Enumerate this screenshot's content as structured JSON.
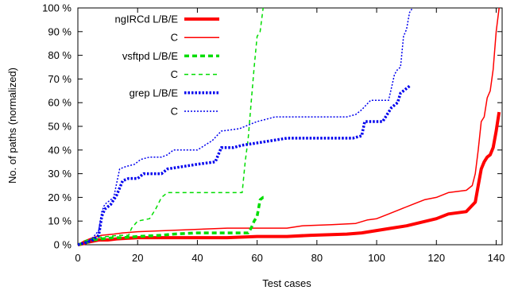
{
  "chart_data": {
    "type": "line",
    "title": "",
    "xlabel": "Test cases",
    "ylabel": "No. of paths (normalized)",
    "xlim": [
      0,
      142
    ],
    "ylim": [
      0,
      100
    ],
    "x_ticks": [
      "0",
      "20",
      "40",
      "60",
      "80",
      "100",
      "120",
      "140"
    ],
    "y_ticks": [
      "0 %",
      "10 %",
      "20 %",
      "30 %",
      "40 %",
      "50 %",
      "60 %",
      "70 %",
      "80 %",
      "90 %",
      "100 %"
    ],
    "grid": false,
    "legend_position": "top-left",
    "series": [
      {
        "name": "ngIRCd L/B/E",
        "color": "#ff0000",
        "style": "solid-thick",
        "points": [
          [
            0,
            0
          ],
          [
            2,
            0.5
          ],
          [
            3,
            1
          ],
          [
            5,
            1.5
          ],
          [
            7,
            2
          ],
          [
            10,
            2
          ],
          [
            13,
            2.5
          ],
          [
            20,
            3
          ],
          [
            30,
            3
          ],
          [
            40,
            3
          ],
          [
            50,
            3
          ],
          [
            60,
            3.5
          ],
          [
            70,
            3.5
          ],
          [
            78,
            4
          ],
          [
            90,
            4.5
          ],
          [
            95,
            5
          ],
          [
            100,
            6
          ],
          [
            105,
            7
          ],
          [
            110,
            8
          ],
          [
            115,
            9.5
          ],
          [
            120,
            11
          ],
          [
            124,
            13
          ],
          [
            130,
            14
          ],
          [
            133,
            18
          ],
          [
            134,
            25
          ],
          [
            135,
            32
          ],
          [
            136,
            35
          ],
          [
            137,
            37
          ],
          [
            138,
            38
          ],
          [
            139,
            41
          ],
          [
            140,
            48
          ],
          [
            141,
            56
          ]
        ]
      },
      {
        "name": "C",
        "color": "#ff0000",
        "style": "solid-thin",
        "points": [
          [
            0,
            0
          ],
          [
            2,
            1.5
          ],
          [
            5,
            3
          ],
          [
            8,
            4
          ],
          [
            12,
            4.5
          ],
          [
            15,
            5
          ],
          [
            20,
            5.5
          ],
          [
            30,
            6
          ],
          [
            40,
            6.5
          ],
          [
            50,
            7
          ],
          [
            60,
            7
          ],
          [
            70,
            7
          ],
          [
            75,
            8
          ],
          [
            85,
            8.5
          ],
          [
            93,
            9
          ],
          [
            97,
            10.5
          ],
          [
            100,
            11
          ],
          [
            104,
            13
          ],
          [
            108,
            15
          ],
          [
            112,
            17
          ],
          [
            116,
            19
          ],
          [
            120,
            20
          ],
          [
            124,
            22
          ],
          [
            130,
            23
          ],
          [
            132,
            25
          ],
          [
            133,
            30
          ],
          [
            134,
            40
          ],
          [
            135,
            52
          ],
          [
            136,
            54
          ],
          [
            137,
            62
          ],
          [
            138,
            65
          ],
          [
            139,
            74
          ],
          [
            140,
            90
          ],
          [
            141,
            100
          ]
        ]
      },
      {
        "name": "vsftpd L/B/E",
        "color": "#00dd00",
        "style": "dashed-thick",
        "points": [
          [
            0,
            0
          ],
          [
            3,
            1
          ],
          [
            5,
            2
          ],
          [
            8,
            2.5
          ],
          [
            12,
            3
          ],
          [
            15,
            3
          ],
          [
            20,
            3.5
          ],
          [
            28,
            4
          ],
          [
            32,
            4.5
          ],
          [
            40,
            5
          ],
          [
            50,
            5
          ],
          [
            57,
            5
          ],
          [
            58,
            7
          ],
          [
            59,
            10
          ],
          [
            60,
            12
          ],
          [
            61,
            19
          ],
          [
            62,
            20
          ],
          [
            63,
            20
          ]
        ]
      },
      {
        "name": "C",
        "color": "#00dd00",
        "style": "dashed-thin",
        "points": [
          [
            0,
            0
          ],
          [
            3,
            2
          ],
          [
            6,
            3
          ],
          [
            10,
            3.5
          ],
          [
            14,
            4
          ],
          [
            17,
            4
          ],
          [
            18,
            7
          ],
          [
            20,
            10
          ],
          [
            24,
            11
          ],
          [
            26,
            15
          ],
          [
            28,
            20
          ],
          [
            30,
            22
          ],
          [
            40,
            22
          ],
          [
            50,
            22
          ],
          [
            55,
            22
          ],
          [
            56,
            35
          ],
          [
            57,
            45
          ],
          [
            58,
            60
          ],
          [
            59,
            75
          ],
          [
            60,
            88
          ],
          [
            61,
            90
          ],
          [
            62,
            100
          ]
        ]
      },
      {
        "name": "grep L/B/E",
        "color": "#0000ee",
        "style": "dotted-thick",
        "points": [
          [
            0,
            0
          ],
          [
            3,
            1
          ],
          [
            5,
            2
          ],
          [
            7,
            4
          ],
          [
            8,
            12
          ],
          [
            9,
            15
          ],
          [
            11,
            17
          ],
          [
            13,
            21
          ],
          [
            15,
            27
          ],
          [
            17,
            28
          ],
          [
            20,
            28
          ],
          [
            22,
            30
          ],
          [
            24,
            30
          ],
          [
            28,
            30
          ],
          [
            30,
            32
          ],
          [
            35,
            33
          ],
          [
            40,
            34
          ],
          [
            46,
            35
          ],
          [
            48,
            41
          ],
          [
            52,
            41
          ],
          [
            55,
            42
          ],
          [
            60,
            43
          ],
          [
            65,
            44
          ],
          [
            70,
            45
          ],
          [
            80,
            45
          ],
          [
            92,
            45
          ],
          [
            95,
            46
          ],
          [
            96,
            52
          ],
          [
            100,
            52
          ],
          [
            102,
            52
          ],
          [
            105,
            58
          ],
          [
            107,
            60
          ],
          [
            108,
            64
          ],
          [
            109,
            65
          ],
          [
            110,
            66
          ],
          [
            111,
            67
          ]
        ]
      },
      {
        "name": "C",
        "color": "#0000ee",
        "style": "dotted-thin",
        "points": [
          [
            0,
            0
          ],
          [
            3,
            1
          ],
          [
            5,
            3
          ],
          [
            7,
            6
          ],
          [
            8,
            14
          ],
          [
            9,
            17
          ],
          [
            12,
            20
          ],
          [
            14,
            32
          ],
          [
            16,
            33
          ],
          [
            19,
            34
          ],
          [
            21,
            36
          ],
          [
            24,
            37
          ],
          [
            28,
            37
          ],
          [
            30,
            38
          ],
          [
            32,
            40
          ],
          [
            40,
            40
          ],
          [
            45,
            44
          ],
          [
            48,
            48
          ],
          [
            54,
            49
          ],
          [
            56,
            50
          ],
          [
            58,
            51
          ],
          [
            60,
            52
          ],
          [
            63,
            53
          ],
          [
            66,
            54
          ],
          [
            70,
            54
          ],
          [
            80,
            54
          ],
          [
            90,
            54
          ],
          [
            93,
            55
          ],
          [
            95,
            57
          ],
          [
            98,
            61
          ],
          [
            102,
            61
          ],
          [
            104,
            61
          ],
          [
            106,
            72
          ],
          [
            107,
            74
          ],
          [
            108,
            75
          ],
          [
            109,
            88
          ],
          [
            110,
            91
          ],
          [
            111,
            98
          ],
          [
            112,
            100
          ]
        ]
      }
    ]
  }
}
